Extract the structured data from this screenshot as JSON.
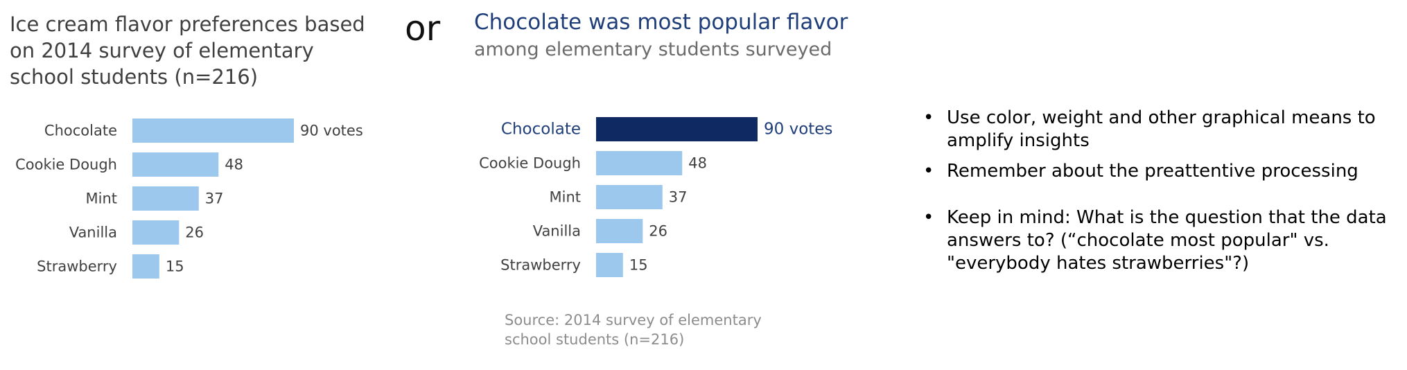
{
  "left_title": "Ice cream flavor preferences based on 2014 survey of elementary school students (n=216)",
  "or_text": "or",
  "right_title": "Chocolate was most popular flavor",
  "right_subtitle": "among elementary students surveyed",
  "source_text": "Source: 2014 survey of elementary school students (n=216)",
  "bullets": [
    "Use color, weight and other graphical means to amplify insights",
    "Remember about the preattentive processing",
    "Keep in mind: What is the question that the data answers to? (“chocolate most popular\" vs. \"everybody hates strawberries\"?)"
  ],
  "colors": {
    "bar_light": "#9dc8ee",
    "bar_highlight": "#0f2a63",
    "label_gray": "#404040",
    "highlight_text": "#1f3e7a"
  },
  "chart_data": [
    {
      "type": "bar",
      "orientation": "horizontal",
      "title": "Ice cream flavor preferences based on 2014 survey of elementary school students (n=216)",
      "categories": [
        "Chocolate",
        "Cookie Dough",
        "Mint",
        "Vanilla",
        "Strawberry"
      ],
      "values": [
        90,
        48,
        37,
        26,
        15
      ],
      "data_labels": [
        "90 votes",
        "48",
        "37",
        "26",
        "15"
      ],
      "highlight": null,
      "xlim": [
        0,
        90
      ],
      "grid": false,
      "legend": "none"
    },
    {
      "type": "bar",
      "orientation": "horizontal",
      "title": "Chocolate was most popular flavor",
      "subtitle": "among elementary students surveyed",
      "categories": [
        "Chocolate",
        "Cookie Dough",
        "Mint",
        "Vanilla",
        "Strawberry"
      ],
      "values": [
        90,
        48,
        37,
        26,
        15
      ],
      "data_labels": [
        "90 votes",
        "48",
        "37",
        "26",
        "15"
      ],
      "highlight": "Chocolate",
      "xlim": [
        0,
        90
      ],
      "grid": false,
      "legend": "none"
    }
  ]
}
